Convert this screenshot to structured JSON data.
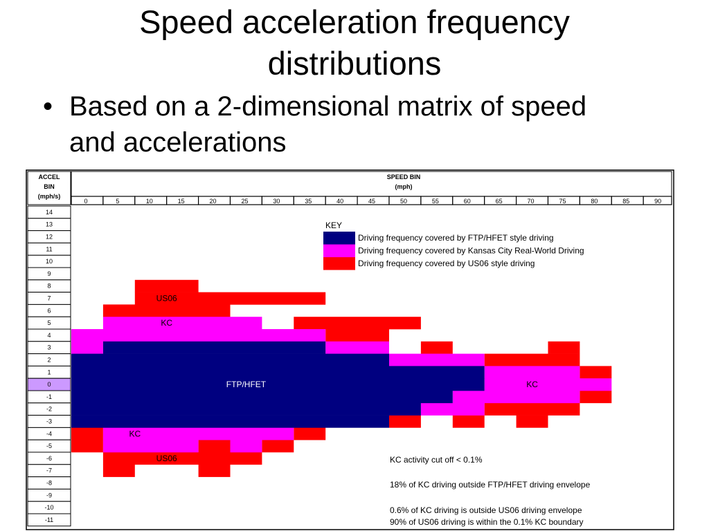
{
  "title_line1": "Speed acceleration frequency",
  "title_line2": "distributions",
  "bullet_char": "•",
  "bullet_line1": "Based on a 2-dimensional matrix of speed",
  "bullet_line2": "and accelerations",
  "matrix": {
    "accel_header": [
      "ACCEL",
      "BIN",
      "(mph/s)"
    ],
    "speed_header": [
      "SPEED BIN",
      "(mph)"
    ],
    "speed_bins": [
      0,
      5,
      10,
      15,
      20,
      25,
      30,
      35,
      40,
      45,
      50,
      55,
      60,
      65,
      70,
      75,
      80,
      85,
      90
    ],
    "accel_bins": [
      14,
      13,
      12,
      11,
      10,
      9,
      8,
      7,
      6,
      5,
      4,
      3,
      2,
      1,
      0,
      -1,
      -2,
      -3,
      -4,
      -5,
      -6,
      -7,
      -8,
      -9,
      -10,
      -11
    ],
    "highlight_accel": 0,
    "highlight_color": "#cc99ff",
    "colors": {
      "ftp": "#000080",
      "kc": "#ff00ff",
      "us06": "#ff0000"
    },
    "regions": {
      "us06": [
        {
          "accel": 8,
          "from": 10,
          "to": 20
        },
        {
          "accel": 7,
          "from": 10,
          "to": 40
        },
        {
          "accel": 6,
          "from": 5,
          "to": 25
        },
        {
          "accel": 5,
          "from": 35,
          "to": 55
        },
        {
          "accel": 4,
          "from": 40,
          "to": 50
        },
        {
          "accel": 3,
          "from": 55,
          "to": 60
        },
        {
          "accel": 3,
          "from": 75,
          "to": 80
        },
        {
          "accel": 2,
          "from": 65,
          "to": 80
        },
        {
          "accel": 1,
          "from": 80,
          "to": 85
        },
        {
          "accel": -1,
          "from": 80,
          "to": 85
        },
        {
          "accel": -2,
          "from": 65,
          "to": 80
        },
        {
          "accel": -3,
          "from": 50,
          "to": 55
        },
        {
          "accel": -3,
          "from": 60,
          "to": 65
        },
        {
          "accel": -3,
          "from": 70,
          "to": 75
        },
        {
          "accel": -4,
          "from": 0,
          "to": 5
        },
        {
          "accel": -4,
          "from": 35,
          "to": 40
        },
        {
          "accel": -5,
          "from": 0,
          "to": 5
        },
        {
          "accel": -5,
          "from": 20,
          "to": 25
        },
        {
          "accel": -5,
          "from": 30,
          "to": 35
        },
        {
          "accel": -6,
          "from": 5,
          "to": 30
        },
        {
          "accel": -7,
          "from": 5,
          "to": 10
        },
        {
          "accel": -7,
          "from": 20,
          "to": 25
        }
      ],
      "kc": [
        {
          "accel": 5,
          "from": 5,
          "to": 30
        },
        {
          "accel": 4,
          "from": 0,
          "to": 40
        },
        {
          "accel": 3,
          "from": 0,
          "to": 5
        },
        {
          "accel": 3,
          "from": 40,
          "to": 50
        },
        {
          "accel": 2,
          "from": 50,
          "to": 65
        },
        {
          "accel": 1,
          "from": 65,
          "to": 80
        },
        {
          "accel": 0,
          "from": 65,
          "to": 85
        },
        {
          "accel": -1,
          "from": 60,
          "to": 80
        },
        {
          "accel": -2,
          "from": 55,
          "to": 65
        },
        {
          "accel": -4,
          "from": 5,
          "to": 35
        },
        {
          "accel": -5,
          "from": 5,
          "to": 20
        },
        {
          "accel": -5,
          "from": 25,
          "to": 30
        }
      ],
      "ftp": [
        {
          "accel": 3,
          "from": 5,
          "to": 40
        },
        {
          "accel": 2,
          "from": 0,
          "to": 50
        },
        {
          "accel": 1,
          "from": 0,
          "to": 65
        },
        {
          "accel": 0,
          "from": 0,
          "to": 65
        },
        {
          "accel": -1,
          "from": 0,
          "to": 60
        },
        {
          "accel": -2,
          "from": 0,
          "to": 55
        },
        {
          "accel": -3,
          "from": 0,
          "to": 50
        }
      ]
    },
    "region_labels": [
      {
        "text": "US06",
        "speed": 15,
        "accel": 7,
        "color": "#000000"
      },
      {
        "text": "KC",
        "speed": 15,
        "accel": 5,
        "color": "#000000"
      },
      {
        "text": "FTP/HFET",
        "speed": 27.5,
        "accel": 0,
        "color": "#ffffff"
      },
      {
        "text": "KC",
        "speed": 72.5,
        "accel": 0,
        "color": "#000000"
      },
      {
        "text": "KC",
        "speed": 10,
        "accel": -4,
        "color": "#000000"
      },
      {
        "text": "US06",
        "speed": 15,
        "accel": -6,
        "color": "#000000"
      }
    ],
    "key_title": "KEY",
    "key_items": [
      {
        "text": "Driving frequency covered by FTP/HFET style driving",
        "color": "#000080"
      },
      {
        "text": "Driving frequency covered by Kansas City Real-World Driving",
        "color": "#ff00ff"
      },
      {
        "text": "Driving frequency covered by US06 style driving",
        "color": "#ff0000"
      }
    ],
    "notes": [
      "KC activity cut off < 0.1%",
      "18% of KC driving outside FTP/HFET driving envelope",
      "0.6% of KC driving is outside US06 driving envelope",
      "90% of US06 driving is within the 0.1% KC boundary"
    ]
  }
}
